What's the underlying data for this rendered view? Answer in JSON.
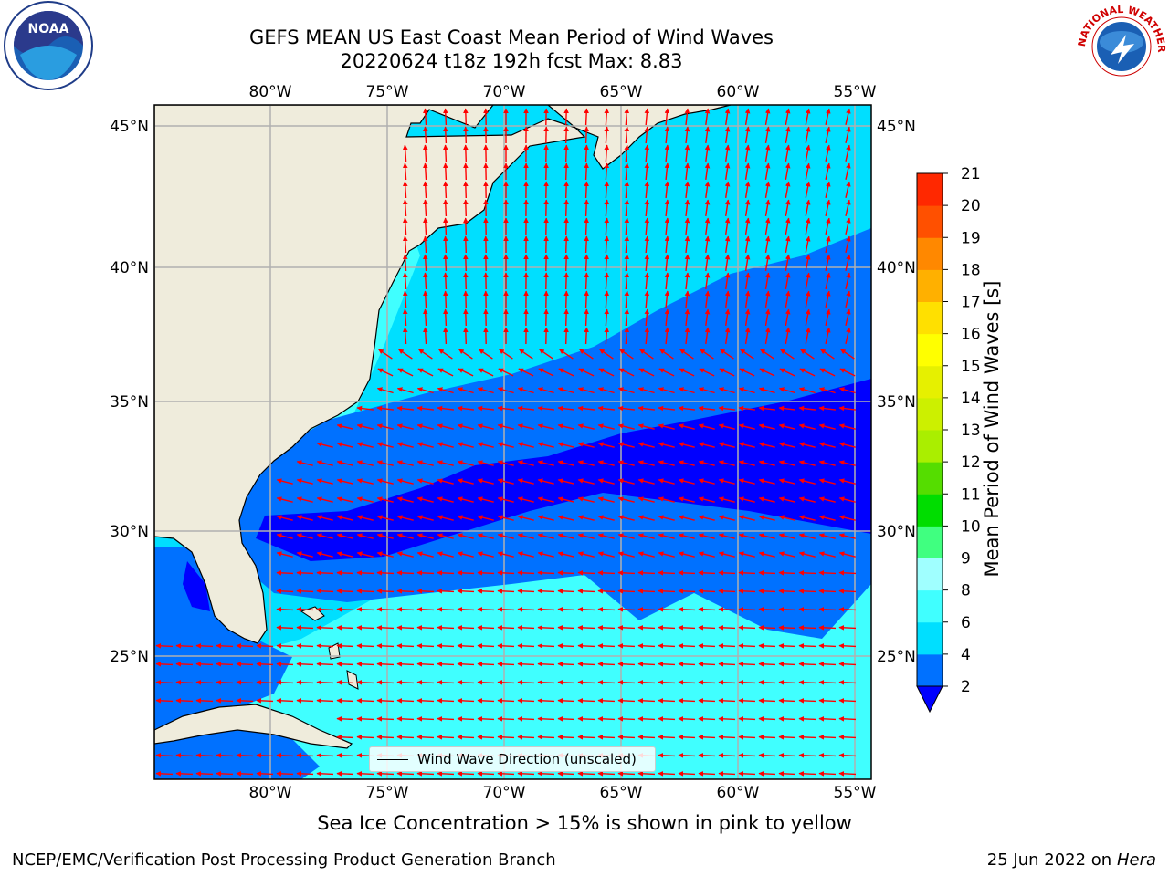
{
  "header": {
    "title_line1": "GEFS MEAN US East Coast Mean Period of Wind Waves",
    "title_line2": "20220624 t18z 192h fcst   Max: 8.83"
  },
  "logos": {
    "left": {
      "name": "noaa-logo",
      "text": "NOAA"
    },
    "right": {
      "name": "nws-logo",
      "text": "NATIONAL WEATHER SERVICE"
    }
  },
  "map": {
    "lon_labels": [
      "80°W",
      "75°W",
      "70°W",
      "65°W",
      "60°W",
      "55°W"
    ],
    "lat_labels": [
      "45°N",
      "40°N",
      "35°N",
      "30°N",
      "25°N"
    ],
    "land_color": "#efecdc",
    "arrow_color": "#ff0000",
    "legend_label": "Wind Wave Direction (unscaled)"
  },
  "colorbar": {
    "label": "Mean Period of Wind Waves [s]",
    "ticks": [
      "2",
      "4",
      "6",
      "8",
      "9",
      "10",
      "11",
      "12",
      "13",
      "14",
      "15",
      "16",
      "17",
      "18",
      "19",
      "20",
      "21"
    ],
    "colors": [
      "#0071ff",
      "#00dfff",
      "#40ffff",
      "#a0ffff",
      "#40ff80",
      "#00dd00",
      "#55dd00",
      "#aaee00",
      "#ccf000",
      "#e6f000",
      "#ffff00",
      "#ffe000",
      "#ffb000",
      "#ff8800",
      "#ff5000",
      "#ff2800",
      "#ff0000"
    ],
    "under_color": "#0000ff"
  },
  "footer": {
    "note": "Sea Ice Concentration > 15% is shown in pink to yellow",
    "credit_left": "NCEP/EMC/Verification Post Processing Product Generation Branch",
    "date_text": "25 Jun 2022 on",
    "system": "Hera"
  }
}
